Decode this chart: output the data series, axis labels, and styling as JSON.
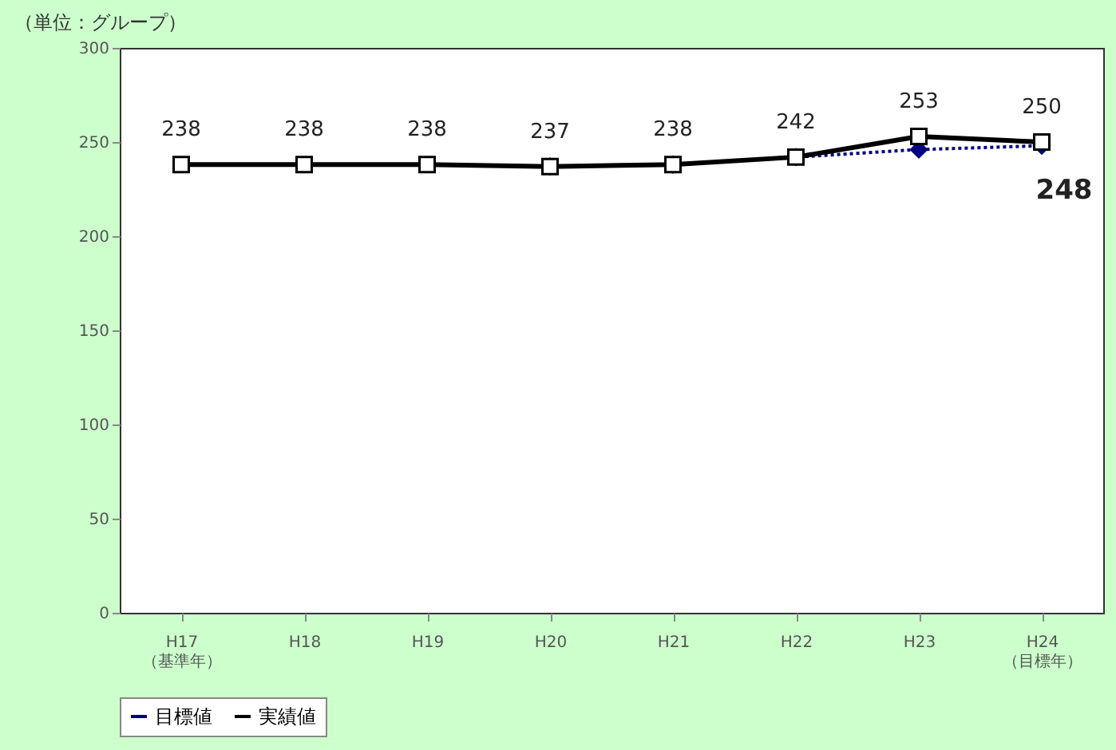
{
  "chart_data": {
    "type": "line",
    "ylabel": "（単位：グループ）",
    "categories": [
      "H17\n（基準年）",
      "H18",
      "H19",
      "H20",
      "H21",
      "H22",
      "H23",
      "H24\n（目標年）"
    ],
    "series": [
      {
        "name": "目標値",
        "color": "#000080",
        "marker": "diamond",
        "line_style": "dotted",
        "values": [
          null,
          null,
          null,
          237,
          238,
          242,
          246,
          248
        ],
        "value_labels": [
          null,
          null,
          null,
          null,
          null,
          null,
          null,
          "248"
        ]
      },
      {
        "name": "実績値",
        "color": "#000000",
        "marker": "square",
        "line_style": "solid",
        "values": [
          238,
          238,
          238,
          237,
          238,
          242,
          253,
          250
        ],
        "value_labels": [
          "238",
          "238",
          "238",
          "237",
          "238",
          "242",
          "253",
          "250"
        ]
      }
    ],
    "ylim": [
      0,
      300
    ],
    "yticks": [
      0,
      50,
      100,
      150,
      200,
      250,
      300
    ],
    "grid": false,
    "legend": "bottom"
  }
}
